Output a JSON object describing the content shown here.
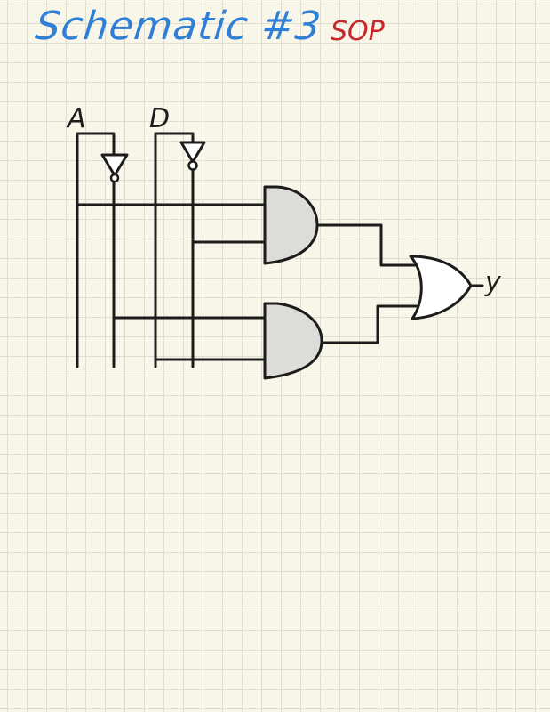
{
  "title": "Schematic #3",
  "subtitle": "SOP",
  "inputs": {
    "a_label": "A",
    "d_label": "D"
  },
  "output": {
    "y_label": "y"
  },
  "colors": {
    "title": "#2f7fd6",
    "subtitle": "#c8262a",
    "ink": "#1c1c1c",
    "gate_fill": "#dcdcd9",
    "paper": "#f8f6e9",
    "grid": "#e0ddd0"
  },
  "components": [
    "not-gate",
    "not-gate",
    "and-gate",
    "and-gate",
    "or-gate"
  ]
}
